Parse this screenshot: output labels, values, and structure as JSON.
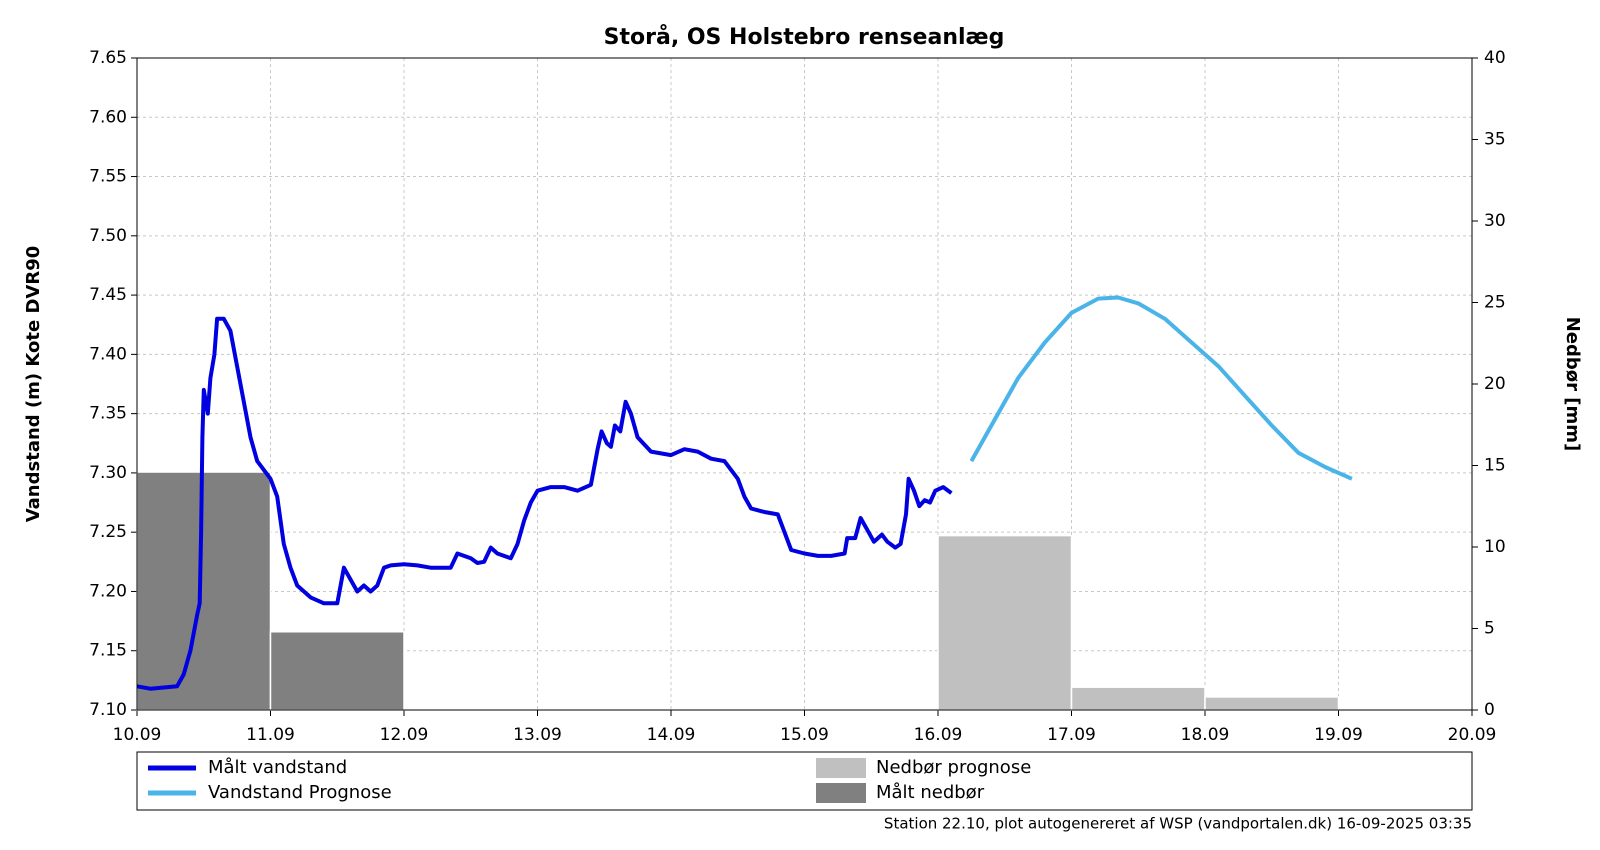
{
  "chart_data": {
    "type": "line",
    "title": "Storå, OS Holstebro renseanlæg",
    "ylabel": "Vandstand (m) Kote DVR90",
    "y2label": "Nedbør [mm]",
    "annotation": "Station 22.10, plot autogenereret af WSP (vandportalen.dk) 16-09-2025 03:35",
    "grid": true,
    "xlim": [
      10,
      20
    ],
    "xticks": [
      {
        "value": 10,
        "label": "10.09"
      },
      {
        "value": 11,
        "label": "11.09"
      },
      {
        "value": 12,
        "label": "12.09"
      },
      {
        "value": 13,
        "label": "13.09"
      },
      {
        "value": 14,
        "label": "14.09"
      },
      {
        "value": 15,
        "label": "15.09"
      },
      {
        "value": 16,
        "label": "16.09"
      },
      {
        "value": 17,
        "label": "17.09"
      },
      {
        "value": 18,
        "label": "18.09"
      },
      {
        "value": 19,
        "label": "19.09"
      },
      {
        "value": 20,
        "label": "20.09"
      }
    ],
    "ylim": [
      7.1,
      7.65
    ],
    "yticks": [
      {
        "value": 7.1,
        "label": "7.10"
      },
      7.15,
      {
        "value": 7.2,
        "label": "7.20"
      },
      7.25,
      {
        "value": 7.3,
        "label": "7.30"
      },
      7.35,
      {
        "value": 7.4,
        "label": "7.40"
      },
      7.45,
      {
        "value": 7.5,
        "label": "7.50"
      },
      7.55,
      {
        "value": 7.6,
        "label": "7.60"
      },
      7.65
    ],
    "y2lim": [
      0,
      40
    ],
    "y2ticks": [
      0,
      5,
      10,
      15,
      20,
      25,
      30,
      35,
      40
    ],
    "series": [
      {
        "name": "Målt vandstand",
        "color": "#0000e0",
        "type": "line",
        "x": [
          10.0,
          10.1,
          10.3,
          10.35,
          10.4,
          10.45,
          10.47,
          10.48,
          10.49,
          10.5,
          10.53,
          10.55,
          10.58,
          10.6,
          10.65,
          10.7,
          10.75,
          10.8,
          10.85,
          10.9,
          11.0,
          11.05,
          11.1,
          11.15,
          11.2,
          11.3,
          11.4,
          11.5,
          11.55,
          11.6,
          11.65,
          11.7,
          11.75,
          11.8,
          11.85,
          11.9,
          12.0,
          12.1,
          12.2,
          12.35,
          12.4,
          12.5,
          12.55,
          12.6,
          12.65,
          12.7,
          12.8,
          12.85,
          12.9,
          12.95,
          13.0,
          13.1,
          13.2,
          13.3,
          13.4,
          13.45,
          13.48,
          13.52,
          13.55,
          13.58,
          13.62,
          13.66,
          13.7,
          13.75,
          13.85,
          14.0,
          14.1,
          14.2,
          14.3,
          14.4,
          14.5,
          14.55,
          14.6,
          14.7,
          14.8,
          14.85,
          14.9,
          15.0,
          15.1,
          15.2,
          15.3,
          15.32,
          15.38,
          15.42,
          15.48,
          15.52,
          15.58,
          15.62,
          15.68,
          15.72,
          15.76,
          15.78,
          15.82,
          15.86,
          15.9,
          15.94,
          15.98,
          16.04,
          16.1
        ],
        "values": [
          7.12,
          7.118,
          7.12,
          7.13,
          7.15,
          7.18,
          7.19,
          7.25,
          7.33,
          7.37,
          7.35,
          7.38,
          7.4,
          7.43,
          7.43,
          7.42,
          7.39,
          7.36,
          7.33,
          7.31,
          7.295,
          7.28,
          7.24,
          7.22,
          7.205,
          7.195,
          7.19,
          7.19,
          7.22,
          7.21,
          7.2,
          7.205,
          7.2,
          7.205,
          7.22,
          7.222,
          7.223,
          7.222,
          7.22,
          7.22,
          7.232,
          7.228,
          7.224,
          7.225,
          7.237,
          7.232,
          7.228,
          7.24,
          7.26,
          7.275,
          7.285,
          7.288,
          7.288,
          7.285,
          7.29,
          7.32,
          7.335,
          7.325,
          7.322,
          7.34,
          7.335,
          7.36,
          7.35,
          7.33,
          7.318,
          7.315,
          7.32,
          7.318,
          7.312,
          7.31,
          7.295,
          7.28,
          7.27,
          7.267,
          7.265,
          7.25,
          7.235,
          7.232,
          7.23,
          7.23,
          7.232,
          7.245,
          7.245,
          7.262,
          7.25,
          7.242,
          7.248,
          7.242,
          7.237,
          7.24,
          7.265,
          7.295,
          7.285,
          7.272,
          7.277,
          7.275,
          7.285,
          7.288,
          7.283
        ]
      },
      {
        "name": "Vandstand Prognose",
        "color": "#4ab4e8",
        "type": "line",
        "x": [
          16.25,
          16.4,
          16.6,
          16.8,
          17.0,
          17.2,
          17.35,
          17.5,
          17.7,
          17.9,
          18.1,
          18.3,
          18.5,
          18.7,
          18.9,
          19.1
        ],
        "values": [
          7.31,
          7.34,
          7.38,
          7.41,
          7.435,
          7.447,
          7.448,
          7.443,
          7.43,
          7.41,
          7.39,
          7.365,
          7.34,
          7.317,
          7.305,
          7.295
        ]
      },
      {
        "name": "Nedbør prognose",
        "color": "#c0c0c0",
        "type": "bar",
        "axis": "y2",
        "bins": [
          16,
          17,
          18,
          19
        ],
        "values": [
          10.7,
          1.4,
          0.8
        ]
      },
      {
        "name": "Målt nedbør",
        "color": "#808080",
        "type": "bar",
        "axis": "y2",
        "bins": [
          10,
          11,
          12
        ],
        "values": [
          14.6,
          4.8
        ]
      }
    ]
  }
}
